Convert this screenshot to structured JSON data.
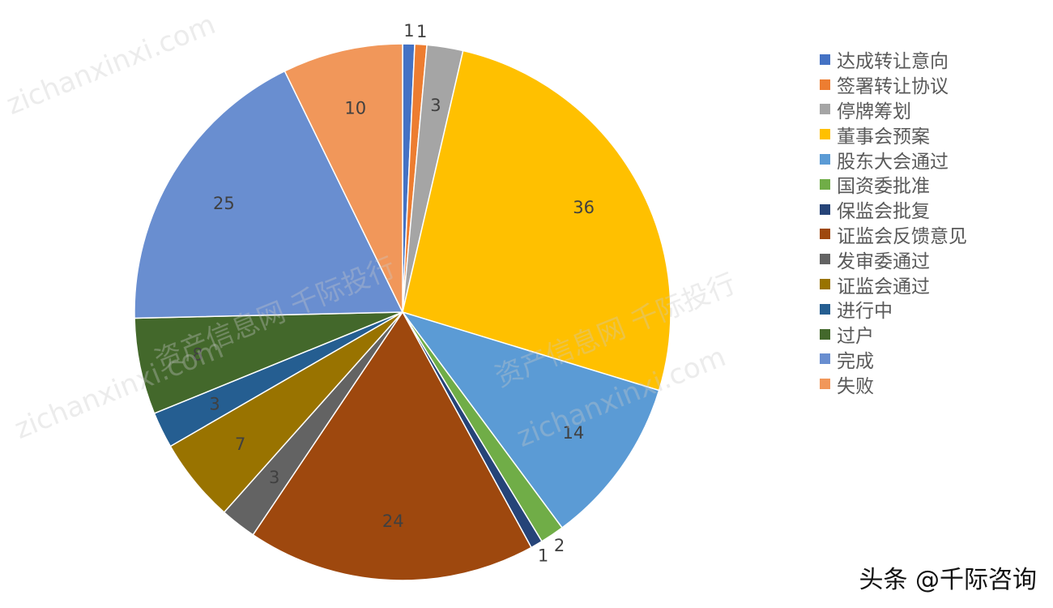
{
  "chart_data": {
    "type": "pie",
    "title": "",
    "categories": [
      "达成转让意向",
      "签署转让协议",
      "停牌筹划",
      "董事会预案",
      "股东大会通过",
      "国资委批准",
      "保监会批复",
      "证监会反馈意见",
      "发审委通过",
      "证监会通过",
      "进行中",
      "过户",
      "完成",
      "失败"
    ],
    "values": [
      1,
      1,
      3,
      36,
      14,
      2,
      1,
      24,
      3,
      7,
      3,
      8,
      25,
      10
    ],
    "colors": [
      "#4472C4",
      "#ED7D31",
      "#A5A5A5",
      "#FFC000",
      "#5B9BD5",
      "#70AD47",
      "#264478",
      "#9E480E",
      "#636363",
      "#997300",
      "#255E91",
      "#43682B",
      "#698ED0",
      "#F1975A"
    ],
    "data_labels": [
      "1",
      "1",
      "3",
      "36",
      "14",
      "2",
      "1",
      "24",
      "3",
      "7",
      "3",
      "8",
      "25",
      "10"
    ],
    "legend_position": "right",
    "start_angle_deg": 0,
    "direction": "clockwise"
  },
  "legend": {
    "items": [
      "达成转让意向",
      "签署转让协议",
      "停牌筹划",
      "董事会预案",
      "股东大会通过",
      "国资委批准",
      "保监会批复",
      "证监会反馈意见",
      "发审委通过",
      "证监会通过",
      "进行中",
      "过户",
      "完成",
      "失败"
    ]
  },
  "footer": {
    "text": "头条 @千际咨询"
  },
  "watermarks": [
    "资产信息网 千际投行",
    "zichanxinxi.com"
  ]
}
